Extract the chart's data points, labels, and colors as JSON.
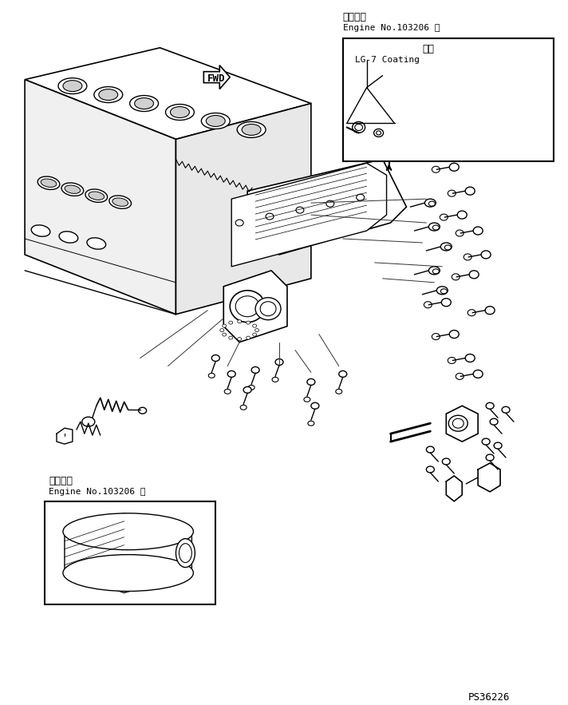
{
  "bg_color": "#ffffff",
  "line_color": "#000000",
  "fig_width": 7.12,
  "fig_height": 8.83,
  "dpi": 100,
  "title_text": "",
  "watermark": "PS36226",
  "top_right_label1": "適用号機",
  "top_right_label2": "Engine No.103206 ～",
  "coating_label1": "塗布",
  "coating_label2": "LG-7 Coating",
  "bottom_left_label1": "適用号機",
  "bottom_left_label2": "Engine No.103206 ～",
  "fwd_text": "FWD"
}
